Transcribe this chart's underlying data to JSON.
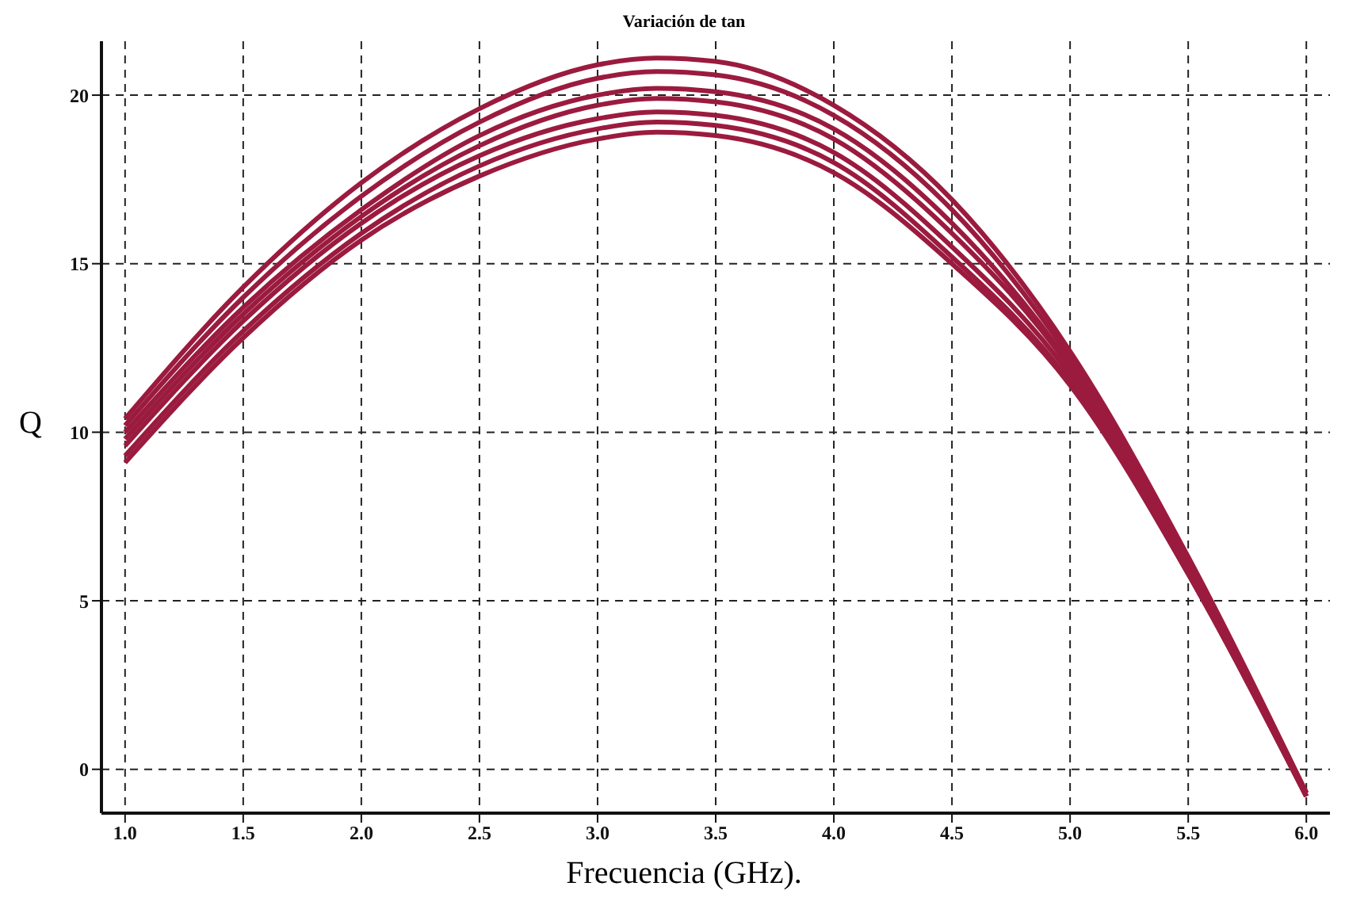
{
  "chart_data": {
    "type": "line",
    "title": "Variación de tan",
    "xlabel": "Frecuencia (GHz).",
    "ylabel": "Q",
    "x": [
      1,
      1.5,
      2,
      2.5,
      3,
      3.25,
      3.5,
      4,
      4.5,
      5,
      5.5,
      6
    ],
    "series": [
      {
        "color": "#9b1b3f",
        "values": [
          10.4,
          14.3,
          17.4,
          19.6,
          20.9,
          21.1,
          21.0,
          19.7,
          16.9,
          12.4,
          6.3,
          -0.7
        ]
      },
      {
        "color": "#9b1b3f",
        "values": [
          10.2,
          14.0,
          17.0,
          19.2,
          20.5,
          20.7,
          20.6,
          19.4,
          16.6,
          12.2,
          6.2,
          -0.7
        ]
      },
      {
        "color": "#9b1b3f",
        "values": [
          10.0,
          13.7,
          16.6,
          18.8,
          20.0,
          20.2,
          20.1,
          19.0,
          16.2,
          12.0,
          6.1,
          -0.7
        ]
      },
      {
        "color": "#9b1b3f",
        "values": [
          9.8,
          13.5,
          16.4,
          18.5,
          19.7,
          19.9,
          19.8,
          18.7,
          15.9,
          11.9,
          6.0,
          -0.8
        ]
      },
      {
        "color": "#9b1b3f",
        "values": [
          9.6,
          13.3,
          16.2,
          18.2,
          19.3,
          19.5,
          19.4,
          18.3,
          15.5,
          11.7,
          5.9,
          -0.8
        ]
      },
      {
        "color": "#9b1b3f",
        "values": [
          9.3,
          13.0,
          15.9,
          17.9,
          19.0,
          19.2,
          19.1,
          18.0,
          15.2,
          11.5,
          5.8,
          -0.8
        ]
      },
      {
        "color": "#9b1b3f",
        "values": [
          9.1,
          12.8,
          15.7,
          17.6,
          18.7,
          18.9,
          18.8,
          17.7,
          15.0,
          11.4,
          5.8,
          -0.8
        ]
      }
    ],
    "xlim": [
      0.9,
      6.1
    ],
    "xticks": [
      {
        "value": 1,
        "label": "1.0"
      },
      1.5,
      {
        "value": 2,
        "label": "2.0"
      },
      2.5,
      {
        "value": 3,
        "label": "3.0"
      },
      3.5,
      {
        "value": 4,
        "label": "4.0"
      },
      4.5,
      {
        "value": 5,
        "label": "5.0"
      },
      5.5,
      {
        "value": 6,
        "label": "6.0"
      }
    ],
    "ylim": [
      -1.3,
      21.6
    ],
    "yticks": [
      0,
      5,
      10,
      15,
      20
    ],
    "grid": true,
    "marker": "none",
    "line_style": "solid"
  }
}
